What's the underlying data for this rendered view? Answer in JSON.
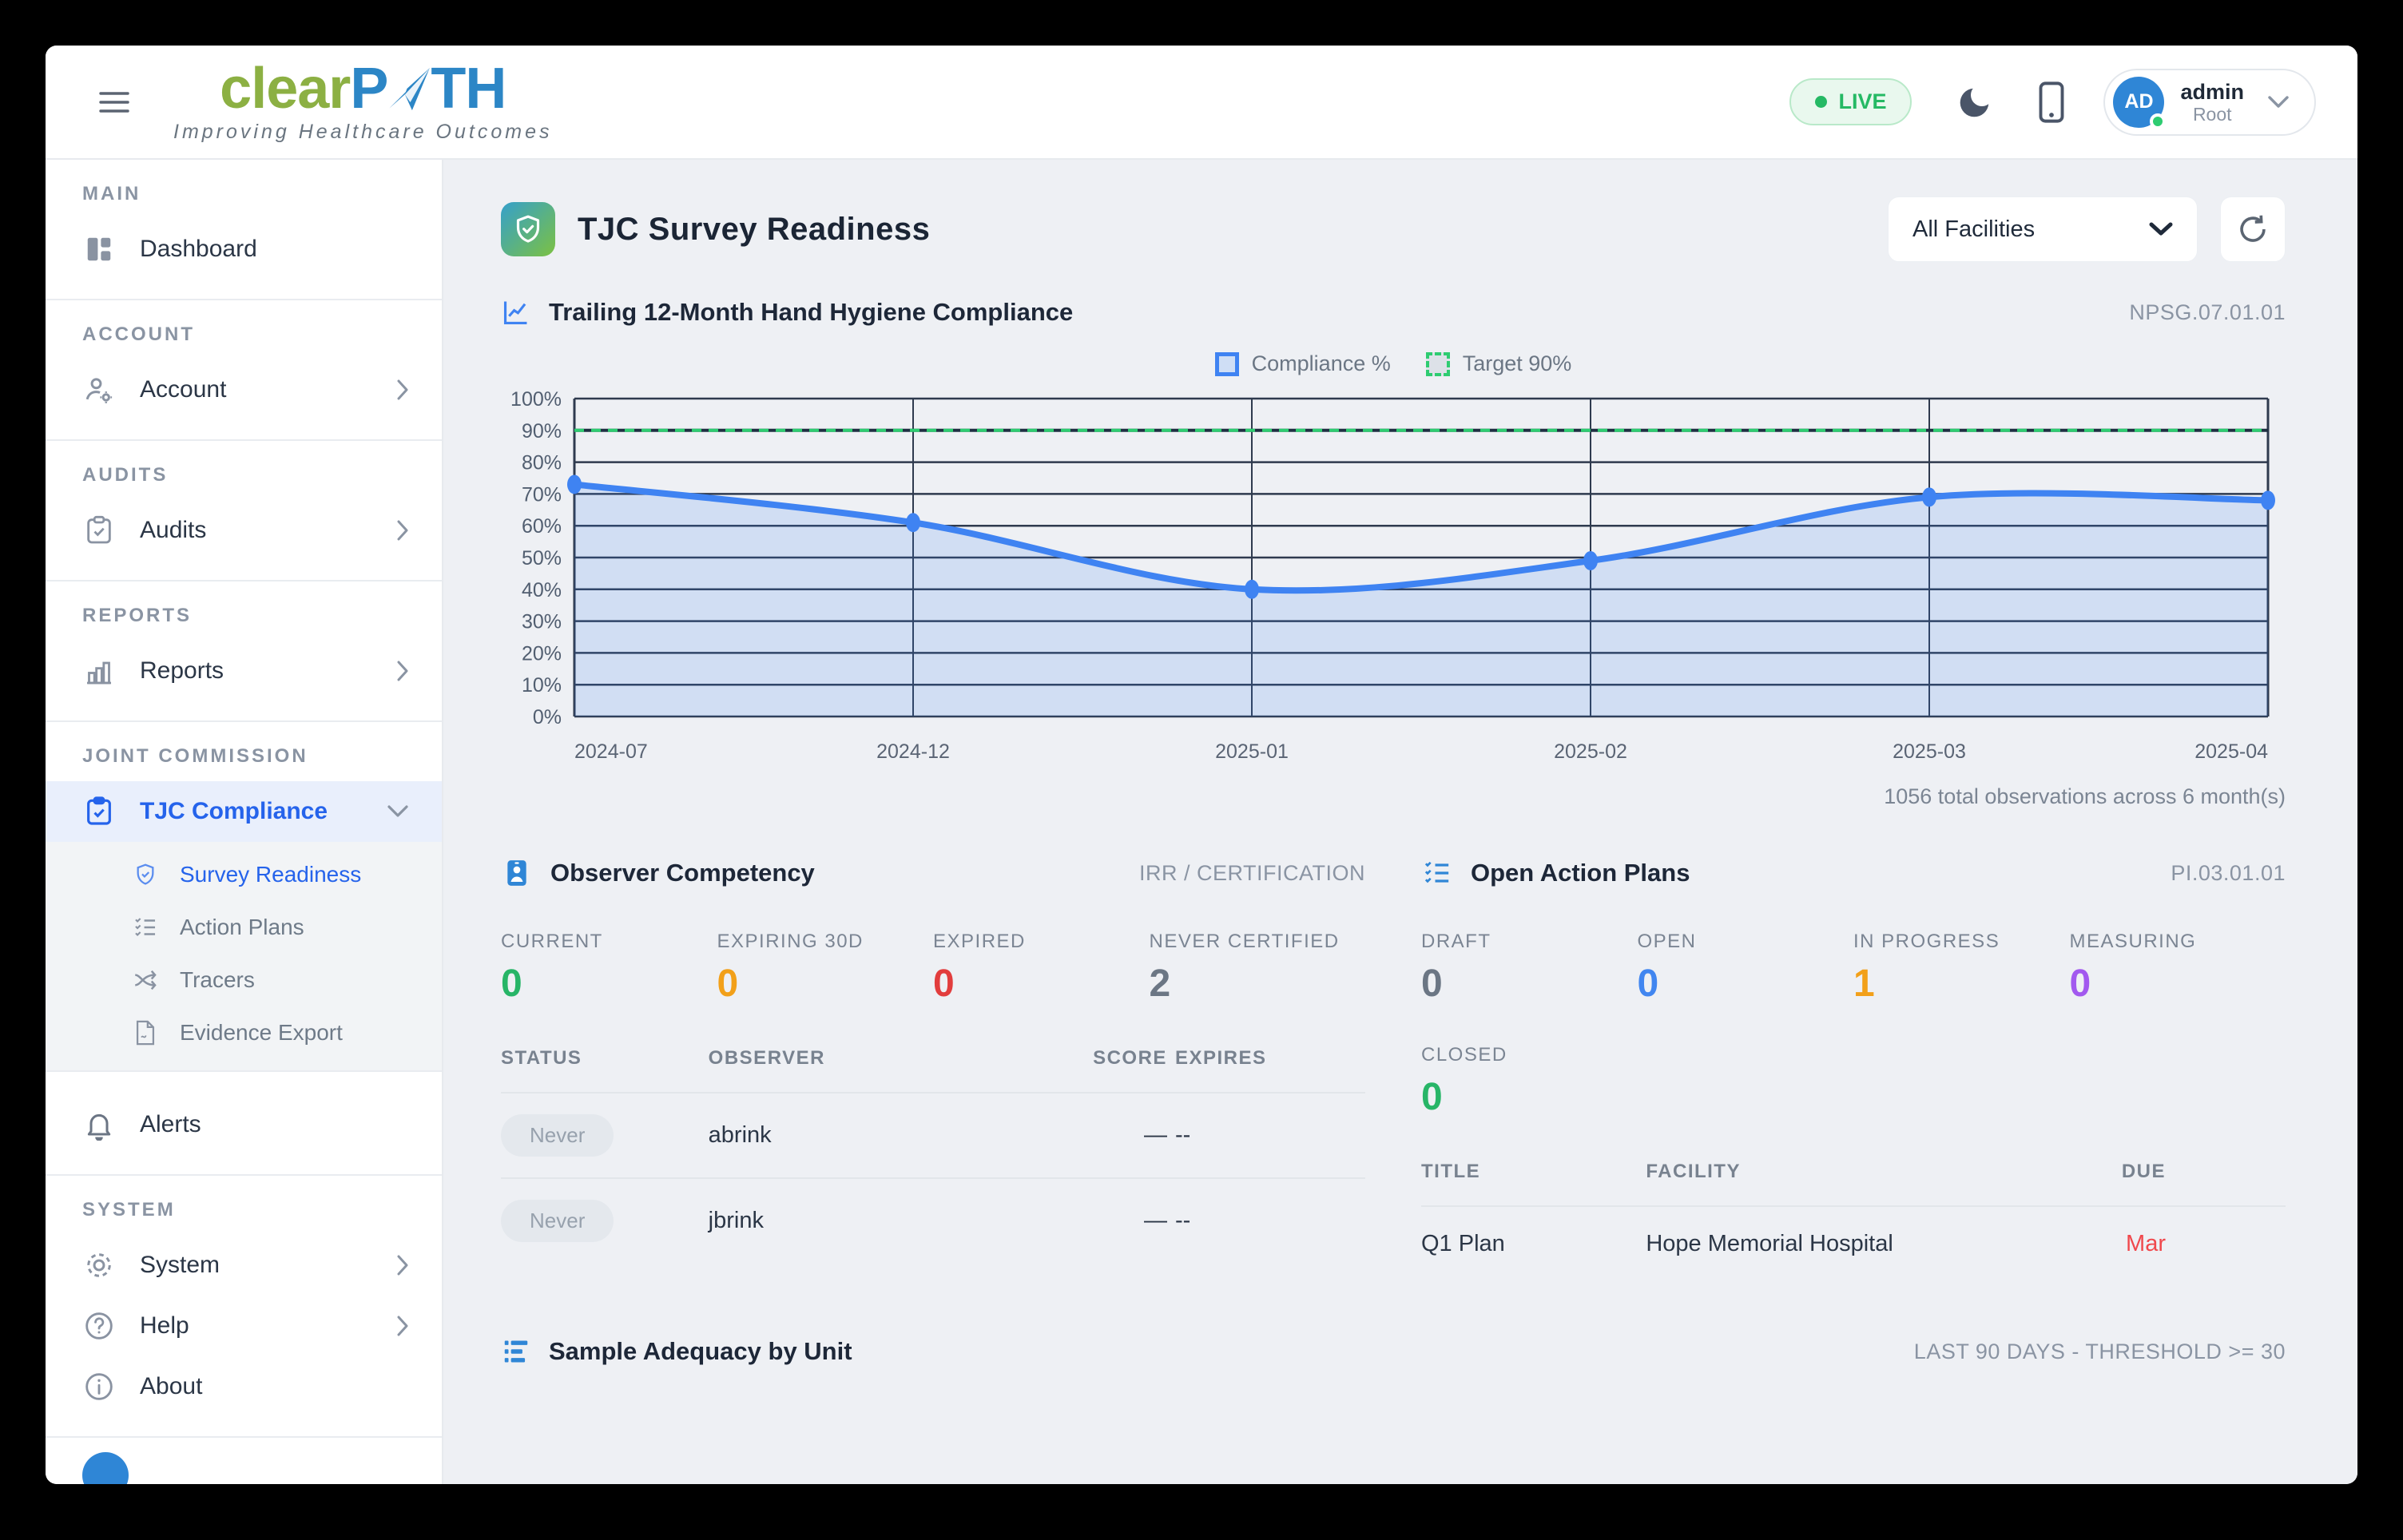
{
  "colors": {
    "green": "#27b567",
    "orange": "#f2a019",
    "red": "#e23d3d",
    "slate": "#6b7684",
    "blue": "#4186f0",
    "purple": "#a259ef",
    "due_red": "#f0484c",
    "accent_blue": "#2f86d6",
    "logo_green": "#8CB043",
    "logo_blue": "#2C86C6",
    "live_green": "#25b964",
    "chart_line": "#3f83f2",
    "target_green": "#2ecc71",
    "active_item_blue": "#2563eb"
  },
  "header": {
    "logo_part1": "clear",
    "logo_part2": "P",
    "logo_part3": "TH",
    "tagline": "Improving Healthcare Outcomes",
    "live_label": "LIVE",
    "user_initials": "AD",
    "user_name": "admin",
    "user_role": "Root"
  },
  "sidebar": {
    "sections": {
      "main": "MAIN",
      "account": "ACCOUNT",
      "audits": "AUDITS",
      "reports": "REPORTS",
      "joint": "JOINT COMMISSION",
      "system": "SYSTEM"
    },
    "dashboard": "Dashboard",
    "account": "Account",
    "audits": "Audits",
    "reports": "Reports",
    "tjc_compliance": "TJC Compliance",
    "submenu": [
      "Survey Readiness",
      "Action Plans",
      "Tracers",
      "Evidence Export"
    ],
    "alerts": "Alerts",
    "system": "System",
    "help": "Help",
    "about": "About"
  },
  "page": {
    "title": "TJC Survey Readiness",
    "facility_filter": "All Facilities"
  },
  "hygiene": {
    "title": "Trailing 12-Month Hand Hygiene Compliance",
    "code": "NPSG.07.01.01"
  },
  "observer": {
    "title": "Observer Competency",
    "tag": "IRR / CERTIFICATION",
    "stats": [
      {
        "label": "CURRENT",
        "value": "0",
        "color": "green"
      },
      {
        "label": "EXPIRING 30D",
        "value": "0",
        "color": "orange"
      },
      {
        "label": "EXPIRED",
        "value": "0",
        "color": "red"
      },
      {
        "label": "NEVER CERTIFIED",
        "value": "2",
        "color": "slate"
      }
    ],
    "headers": [
      "STATUS",
      "OBSERVER",
      "SCORE",
      "EXPIRES"
    ],
    "rows": [
      {
        "status": "Never",
        "observer": "abrink",
        "score": "—",
        "expires": "--"
      },
      {
        "status": "Never",
        "observer": "jbrink",
        "score": "—",
        "expires": "--"
      }
    ]
  },
  "action_plans": {
    "title": "Open Action Plans",
    "code": "PI.03.01.01",
    "stats": [
      {
        "label": "DRAFT",
        "value": "0",
        "color": "slate"
      },
      {
        "label": "OPEN",
        "value": "0",
        "color": "blue"
      },
      {
        "label": "IN PROGRESS",
        "value": "1",
        "color": "orange"
      },
      {
        "label": "MEASURING",
        "value": "0",
        "color": "purple"
      },
      {
        "label": "CLOSED",
        "value": "0",
        "color": "green"
      }
    ],
    "headers": [
      "TITLE",
      "FACILITY",
      "DUE"
    ],
    "rows": [
      {
        "title": "Q1 Plan",
        "facility": "Hope Memorial Hospital",
        "due": "Mar"
      }
    ]
  },
  "sample": {
    "title": "Sample Adequacy by Unit",
    "tag": "LAST 90 DAYS - THRESHOLD >= 30"
  },
  "chart_data": {
    "type": "line",
    "title": "Trailing 12-Month Hand Hygiene Compliance",
    "x": [
      "2024-07",
      "2024-12",
      "2025-01",
      "2025-02",
      "2025-03",
      "2025-04"
    ],
    "series": [
      {
        "name": "Compliance %",
        "values": [
          73,
          61,
          40,
          49,
          69,
          68
        ]
      }
    ],
    "target": {
      "label": "Target 90%",
      "value": 90
    },
    "ylim": [
      0,
      100
    ],
    "y_tick_step": 10,
    "y_tick_format": "percent",
    "grid": true,
    "legend_position": "top",
    "total_note": "1056 total observations across 6 month(s)"
  }
}
